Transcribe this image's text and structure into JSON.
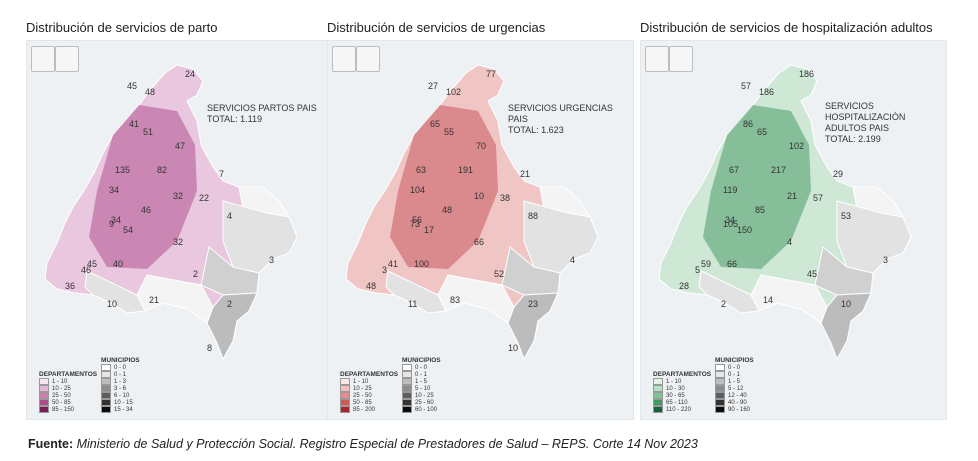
{
  "panels": [
    {
      "title": "Distribución de servicios de parto",
      "summary": [
        "SERVICIOS PARTOS PAIS",
        "TOTAL: 1.119"
      ],
      "accent": "#b0528f",
      "light": "#e9c7de",
      "labels": [
        "45",
        "48",
        "24",
        "41",
        "51",
        "47",
        "135",
        "82",
        "34",
        "32",
        "22",
        "7",
        "34",
        "46",
        "9",
        "54",
        "32",
        "4",
        "3",
        "40",
        "45",
        "46",
        "2",
        "36",
        "21",
        "2",
        "10",
        "8"
      ],
      "legend_dept": {
        "title": "DEPARTAMENTOS",
        "rows": [
          "1 - 10",
          "10 - 25",
          "25 - 50",
          "50 - 85",
          "85 - 150"
        ],
        "colors": [
          "#f7e6f1",
          "#e6b5d4",
          "#cc7fb0",
          "#ad4c8c",
          "#7a1f5c"
        ]
      },
      "legend_mun": {
        "title": "MUNICIPIOS",
        "rows": [
          "0 - 0",
          "0 - 1",
          "1 - 3",
          "3 - 6",
          "6 - 10",
          "10 - 15",
          "15 - 34"
        ]
      }
    },
    {
      "title": "Distribución de servicios de urgencias",
      "summary": [
        "SERVICIOS URGENCIAS PAIS",
        "TOTAL: 1.623"
      ],
      "accent": "#c9575c",
      "light": "#f0c6c5",
      "labels": [
        "27",
        "102",
        "77",
        "65",
        "55",
        "70",
        "63",
        "191",
        "104",
        "10",
        "38",
        "21",
        "56",
        "48",
        "73",
        "17",
        "66",
        "88",
        "4",
        "100",
        "41",
        "3",
        "52",
        "48",
        "83",
        "23",
        "11",
        "10"
      ],
      "legend_dept": {
        "title": "DEPARTAMENTOS",
        "rows": [
          "1 - 10",
          "10 - 25",
          "25 - 50",
          "50 - 85",
          "85 - 200"
        ],
        "colors": [
          "#fbe7e6",
          "#f3bfbd",
          "#e58d8a",
          "#cf5a58",
          "#a8262a"
        ]
      },
      "legend_mun": {
        "title": "MUNICIPIOS",
        "rows": [
          "0 - 0",
          "0 - 1",
          "1 - 5",
          "5 - 10",
          "10 - 25",
          "25 - 60",
          "60 - 100"
        ]
      }
    },
    {
      "title": "Distribución de servicios de hospitalización adultos",
      "summary": [
        "SERVICIOS HOSPITALIZACIÓN",
        "ADULTOS PAIS",
        "TOTAL: 2.199"
      ],
      "accent": "#4a9a6a",
      "light": "#cfe8d6",
      "labels": [
        "57",
        "186",
        "186",
        "86",
        "65",
        "102",
        "67",
        "217",
        "119",
        "21",
        "57",
        "29",
        "34",
        "85",
        "105",
        "150",
        "4",
        "53",
        "3",
        "66",
        "59",
        "5",
        "45",
        "28",
        "14",
        "10",
        "2"
      ],
      "legend_dept": {
        "title": "DEPARTAMENTOS",
        "rows": [
          "1 - 10",
          "10 - 30",
          "30 - 65",
          "65 - 110",
          "110 - 220"
        ],
        "colors": [
          "#e3f3e8",
          "#b6dfc2",
          "#7fc499",
          "#449a66",
          "#17643a"
        ]
      },
      "legend_mun": {
        "title": "MUNICIPIOS",
        "rows": [
          "0 - 0",
          "0 - 1",
          "1 - 5",
          "5 - 12",
          "12 - 40",
          "40 - 90",
          "90 - 160"
        ]
      }
    }
  ],
  "mun_colors": [
    "#ffffff",
    "#e6e6e6",
    "#bdbdbd",
    "#8c8c8c",
    "#5e5e5e",
    "#333333",
    "#0a0a0a"
  ],
  "footer": {
    "label": "Fuente:",
    "text": " Ministerio de Salud y Protección Social. Registro Especial de Prestadores de Salud – REPS. Corte 14 Nov 2023"
  }
}
